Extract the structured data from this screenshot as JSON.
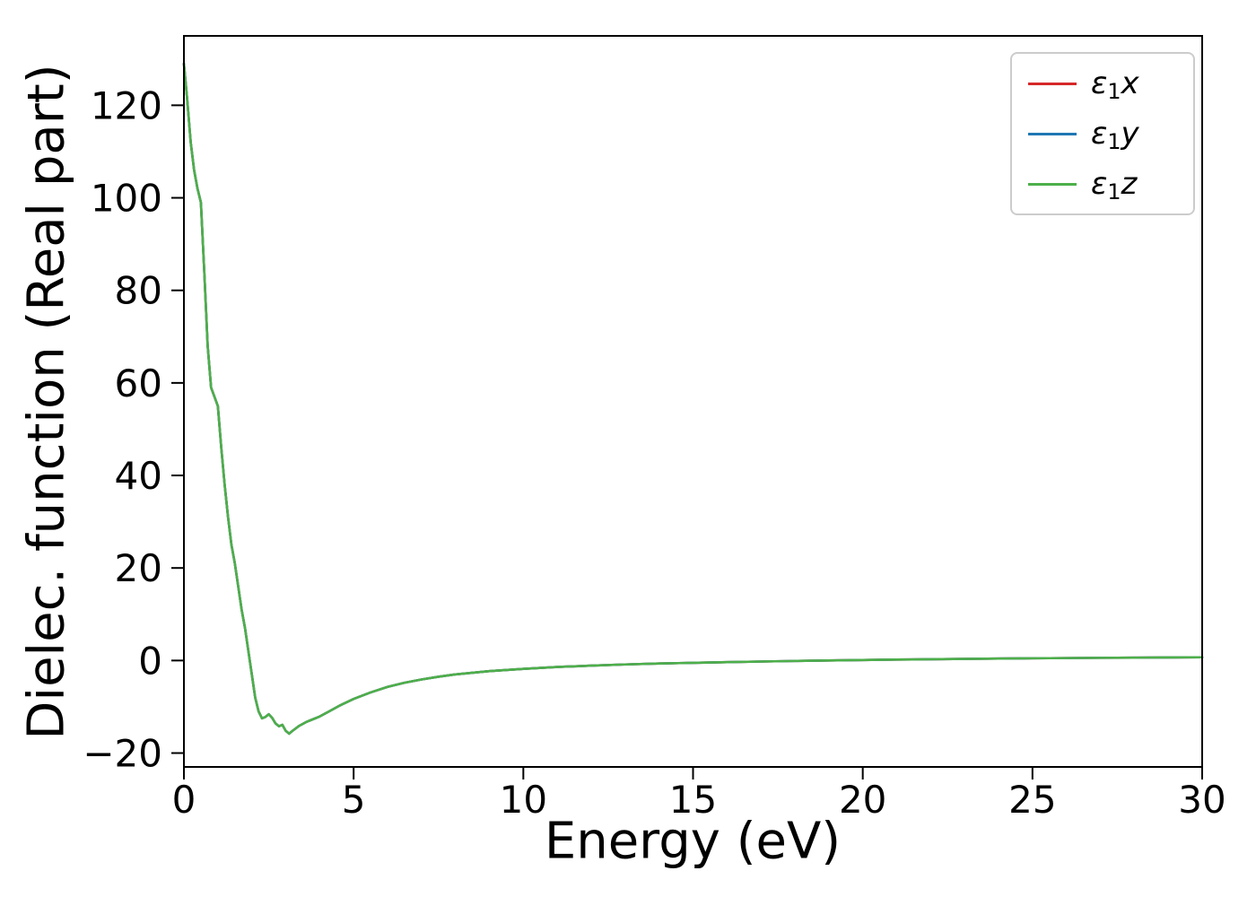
{
  "chart_data": {
    "type": "line",
    "title": "",
    "xlabel": "Energy (eV)",
    "ylabel": "Dielec. function (Real part)",
    "xlim": [
      0,
      30
    ],
    "ylim": [
      -23,
      135
    ],
    "xticks": [
      0,
      5,
      10,
      15,
      20,
      25,
      30
    ],
    "yticks": [
      -20,
      0,
      20,
      40,
      60,
      80,
      100,
      120
    ],
    "grid": false,
    "legend_position": "upper right",
    "x": [
      0,
      0.1,
      0.2,
      0.3,
      0.4,
      0.5,
      0.6,
      0.7,
      0.8,
      0.9,
      1.0,
      1.1,
      1.2,
      1.3,
      1.4,
      1.5,
      1.6,
      1.7,
      1.8,
      1.9,
      2.0,
      2.1,
      2.2,
      2.3,
      2.4,
      2.5,
      2.6,
      2.7,
      2.8,
      2.9,
      3.0,
      3.1,
      3.2,
      3.4,
      3.6,
      3.8,
      4.0,
      4.3,
      4.6,
      5.0,
      5.5,
      6.0,
      6.5,
      7.0,
      7.5,
      8.0,
      9.0,
      10.0,
      11.0,
      12.0,
      13.0,
      14.0,
      15.0,
      16.0,
      17.0,
      18.0,
      19.0,
      20.0,
      21.0,
      22.0,
      23.0,
      24.0,
      25.0,
      26.0,
      27.0,
      28.0,
      29.0,
      30.0
    ],
    "shared_y": [
      129,
      121,
      112,
      106,
      102,
      99,
      84,
      68,
      59,
      57,
      55,
      46,
      38,
      31,
      25,
      21,
      16,
      11,
      7,
      2,
      -3,
      -8,
      -11,
      -12.5,
      -12.2,
      -11.6,
      -12.4,
      -13.6,
      -14.2,
      -13.9,
      -15.2,
      -15.8,
      -15.2,
      -14.1,
      -13.3,
      -12.7,
      -12.1,
      -10.9,
      -9.7,
      -8.3,
      -6.9,
      -5.7,
      -4.8,
      -4.1,
      -3.5,
      -3.0,
      -2.3,
      -1.8,
      -1.4,
      -1.1,
      -0.85,
      -0.65,
      -0.5,
      -0.35,
      -0.22,
      -0.1,
      0.0,
      0.1,
      0.2,
      0.28,
      0.35,
      0.42,
      0.48,
      0.53,
      0.58,
      0.62,
      0.66,
      0.7
    ],
    "series": [
      {
        "name": "ε1x",
        "color": "#d62728",
        "values": "shared_y"
      },
      {
        "name": "ε1y",
        "color": "#1f77b4",
        "values": "shared_y"
      },
      {
        "name": "ε1z",
        "color": "#4daf4a",
        "values": "shared_y"
      }
    ]
  },
  "legend": {
    "entries": [
      {
        "symbol": "ε",
        "sub": "1",
        "var": "x",
        "color": "#d62728"
      },
      {
        "symbol": "ε",
        "sub": "1",
        "var": "y",
        "color": "#1f77b4"
      },
      {
        "symbol": "ε",
        "sub": "1",
        "var": "z",
        "color": "#4daf4a"
      }
    ]
  }
}
